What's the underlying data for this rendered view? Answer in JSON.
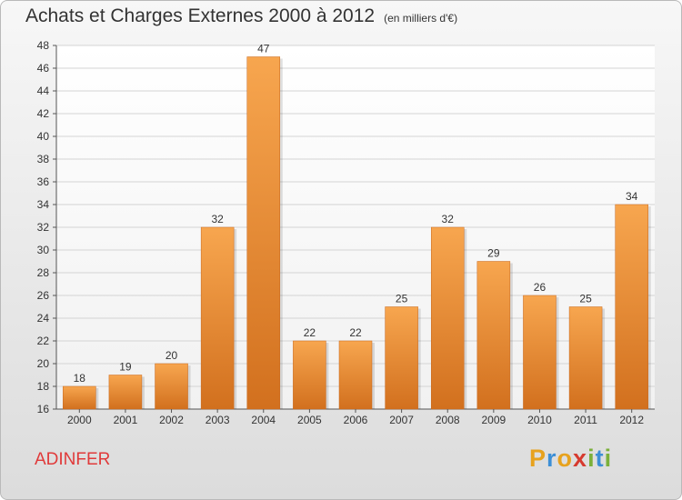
{
  "title": "Achats et Charges Externes 2000 à 2012",
  "unit": "(en milliers d'€)",
  "commune": "ADINFER",
  "logo": {
    "text": "Proxiti",
    "letters": [
      {
        "char": "P",
        "color": "#e7a21e"
      },
      {
        "char": "r",
        "color": "#3d8fd6"
      },
      {
        "char": "o",
        "color": "#e7a21e"
      },
      {
        "char": "x",
        "color": "#d63a2f"
      },
      {
        "char": "i",
        "color": "#7bb03a"
      },
      {
        "char": "t",
        "color": "#3d8fd6"
      },
      {
        "char": "i",
        "color": "#7bb03a"
      }
    ]
  },
  "colors": {
    "bar_top": "#f7a64f",
    "bar_bottom": "#d2701e",
    "grid": "#d4d4d4",
    "axis": "#555555"
  },
  "chart_data": {
    "type": "bar",
    "title": "Achats et Charges Externes 2000 à 2012",
    "subtitle": "(en milliers d'€)",
    "categories": [
      "2000",
      "2001",
      "2002",
      "2003",
      "2004",
      "2005",
      "2006",
      "2007",
      "2008",
      "2009",
      "2010",
      "2011",
      "2012"
    ],
    "values": [
      18,
      19,
      20,
      32,
      47,
      22,
      22,
      25,
      32,
      29,
      26,
      25,
      34
    ],
    "ylim": [
      16,
      48
    ],
    "yticks": [
      16,
      18,
      20,
      22,
      24,
      26,
      28,
      30,
      32,
      34,
      36,
      38,
      40,
      42,
      44,
      46,
      48
    ],
    "grid": true,
    "data_labels": true
  }
}
